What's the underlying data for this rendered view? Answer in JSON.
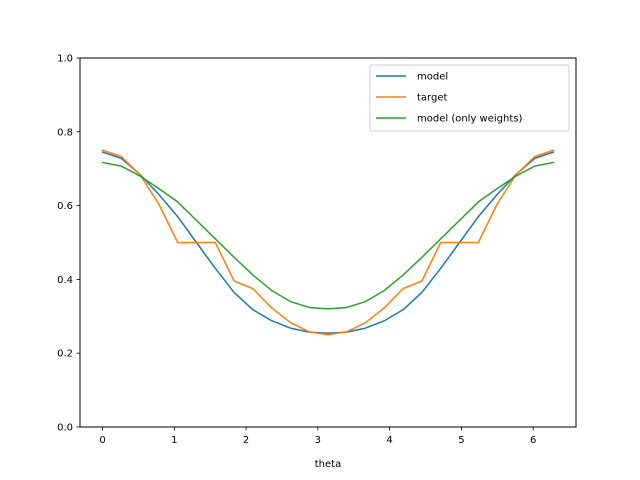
{
  "chart_data": {
    "type": "line",
    "title": "",
    "xlabel": "theta",
    "ylabel": "",
    "xlim": [
      -0.314,
      6.597
    ],
    "ylim": [
      0.0,
      1.0
    ],
    "xticks": [
      0,
      1,
      2,
      3,
      4,
      5,
      6
    ],
    "yticks": [
      0.0,
      0.2,
      0.4,
      0.6,
      0.8,
      1.0
    ],
    "ytick_labels": [
      "0.0",
      "0.2",
      "0.4",
      "0.6",
      "0.8",
      "1.0"
    ],
    "grid": false,
    "legend_position": "top-right",
    "x": [
      0.0,
      0.2618,
      0.5236,
      0.7854,
      1.0472,
      1.309,
      1.5708,
      1.8326,
      2.0944,
      2.3562,
      2.618,
      2.8798,
      3.1416,
      3.4034,
      3.6652,
      3.927,
      4.1888,
      4.4506,
      4.7124,
      4.9742,
      5.236,
      5.4978,
      5.7596,
      6.0214,
      6.2832
    ],
    "series": [
      {
        "name": "model",
        "color": "#1f77b4",
        "values": [
          0.745,
          0.728,
          0.684,
          0.63,
          0.57,
          0.5,
          0.43,
          0.365,
          0.318,
          0.288,
          0.268,
          0.257,
          0.254,
          0.257,
          0.268,
          0.288,
          0.318,
          0.365,
          0.43,
          0.5,
          0.57,
          0.63,
          0.684,
          0.728,
          0.745
        ]
      },
      {
        "name": "target",
        "color": "#ff7f0e",
        "values": [
          0.75,
          0.733,
          0.683,
          0.604,
          0.5,
          0.5,
          0.5,
          0.396,
          0.375,
          0.323,
          0.283,
          0.258,
          0.25,
          0.258,
          0.283,
          0.323,
          0.375,
          0.396,
          0.5,
          0.5,
          0.5,
          0.604,
          0.683,
          0.733,
          0.75
        ]
      },
      {
        "name": "model (only weights)",
        "color": "#2ca02c",
        "values": [
          0.717,
          0.707,
          0.68,
          0.646,
          0.61,
          0.56,
          0.51,
          0.46,
          0.412,
          0.37,
          0.34,
          0.324,
          0.32,
          0.324,
          0.34,
          0.37,
          0.412,
          0.46,
          0.51,
          0.56,
          0.61,
          0.646,
          0.68,
          0.707,
          0.717
        ]
      }
    ]
  }
}
